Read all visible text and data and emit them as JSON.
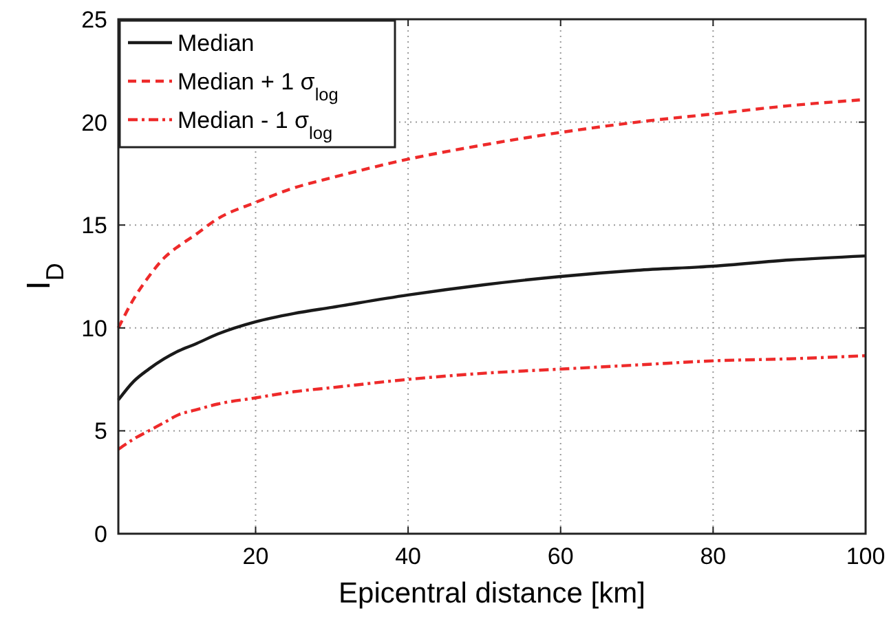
{
  "chart_data": {
    "type": "line",
    "xlabel": "Epicentral distance [km]",
    "ylabel": "I$_{D}$",
    "xlim": [
      2,
      100
    ],
    "ylim": [
      0,
      25
    ],
    "xticks": [
      20,
      40,
      60,
      80,
      100
    ],
    "yticks": [
      0,
      5,
      10,
      15,
      20,
      25
    ],
    "grid": true,
    "legend": "top left",
    "x": [
      2,
      4,
      6,
      8,
      10,
      12,
      15,
      20,
      25,
      30,
      40,
      50,
      60,
      70,
      80,
      90,
      100
    ],
    "series": [
      {
        "name": "Median",
        "color": "#1a1a1a",
        "line_style": "solid",
        "values": [
          6.5,
          7.4,
          8.0,
          8.5,
          8.9,
          9.2,
          9.7,
          10.3,
          10.7,
          11.0,
          11.6,
          12.1,
          12.5,
          12.8,
          13.0,
          13.3,
          13.5
        ]
      },
      {
        "name": "Median + 1 σ$_{log}$",
        "color": "#ee2a2a",
        "line_style": "dashed",
        "values": [
          10.0,
          11.4,
          12.5,
          13.4,
          14.0,
          14.5,
          15.3,
          16.1,
          16.8,
          17.3,
          18.2,
          18.9,
          19.5,
          20.0,
          20.4,
          20.8,
          21.1
        ]
      },
      {
        "name": "Median - 1  σ$_{log}$",
        "color": "#ee2a2a",
        "line_style": "dotted",
        "values": [
          4.1,
          4.6,
          5.0,
          5.4,
          5.8,
          6.0,
          6.3,
          6.6,
          6.9,
          7.1,
          7.5,
          7.8,
          8.0,
          8.2,
          8.4,
          8.5,
          8.65
        ]
      }
    ]
  }
}
